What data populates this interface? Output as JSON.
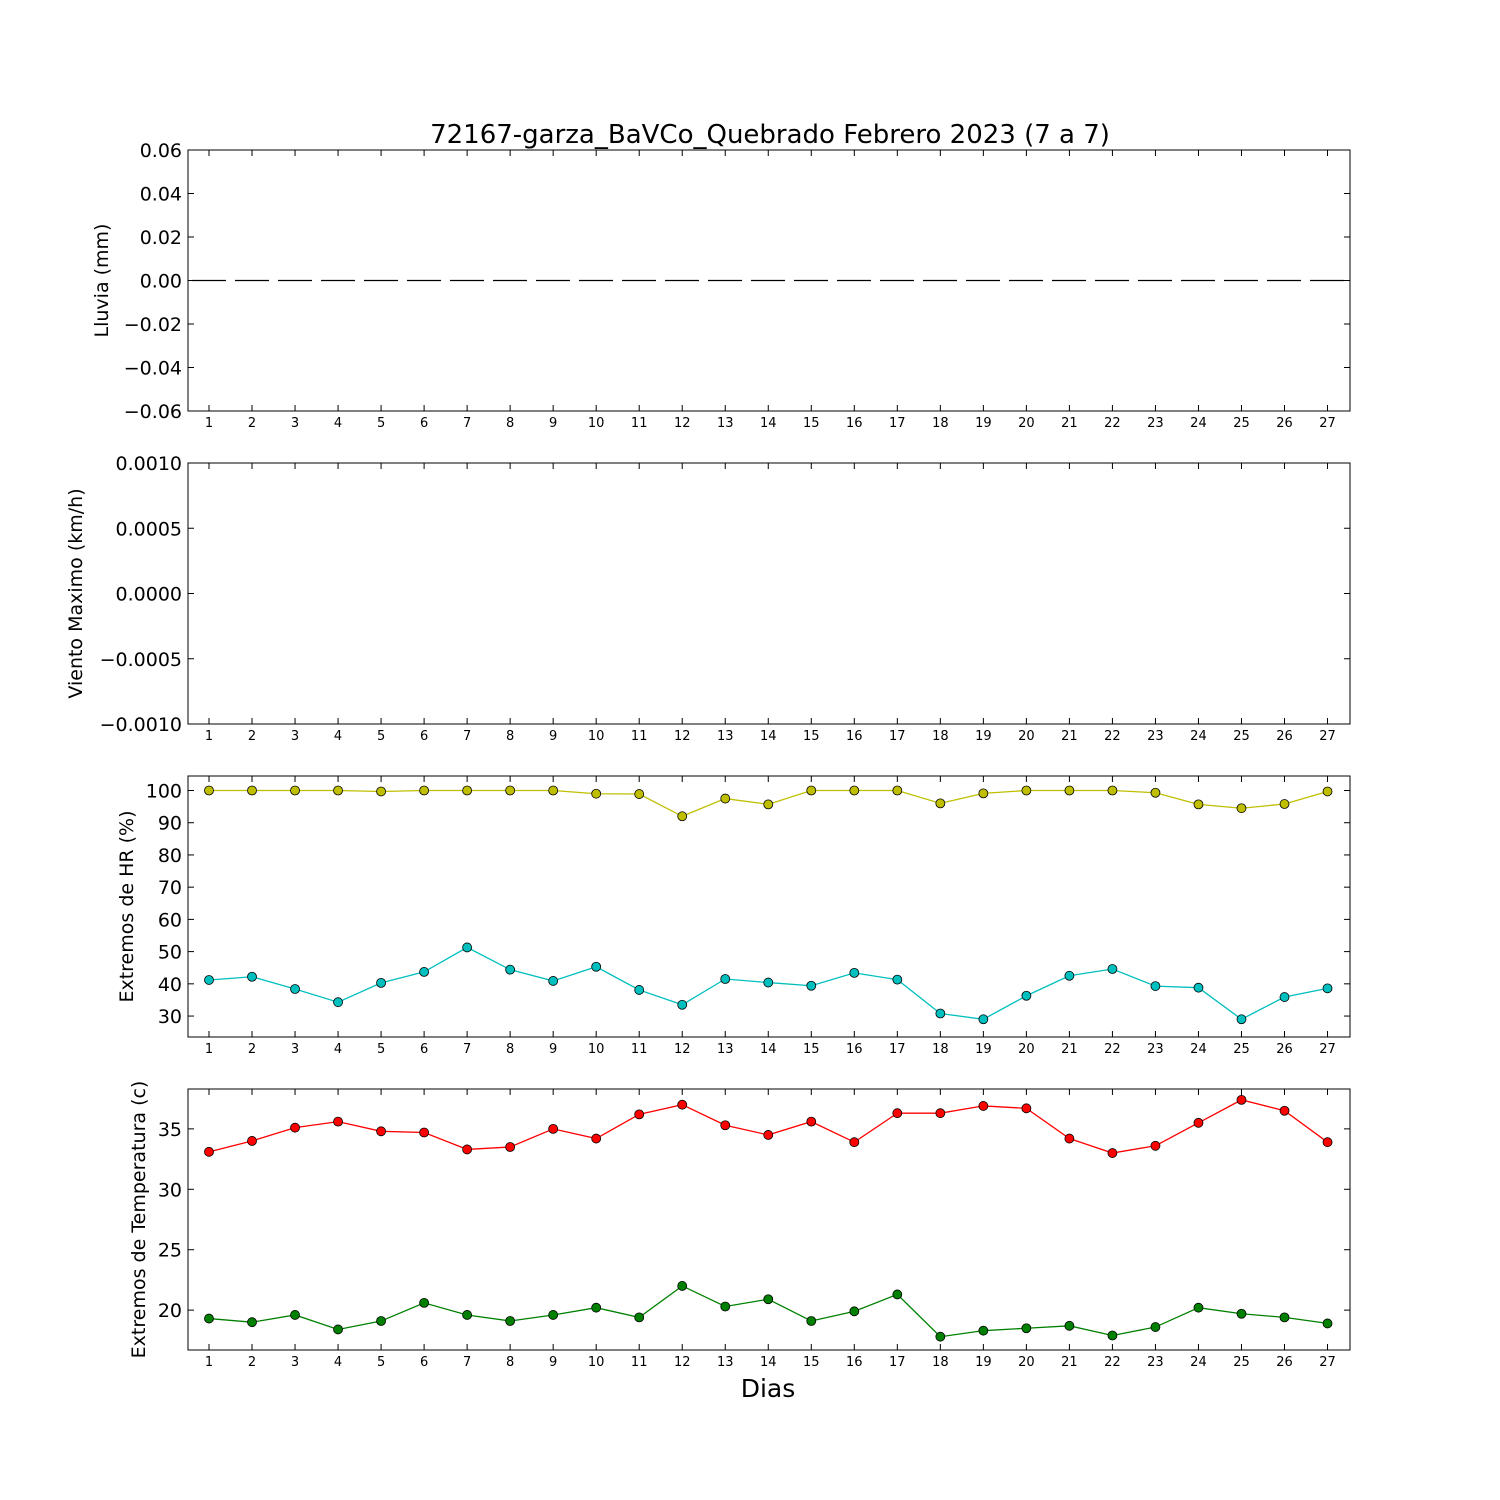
{
  "title": "72167-garza_BaVCo_Quebrado Febrero 2023  (7 a 7)",
  "xlabel": "Dias",
  "days": [
    "1",
    "2",
    "3",
    "4",
    "5",
    "6",
    "7",
    "8",
    "9",
    "10",
    "11",
    "12",
    "13",
    "14",
    "15",
    "16",
    "17",
    "18",
    "19",
    "20",
    "21",
    "22",
    "23",
    "24",
    "25",
    "26",
    "27"
  ],
  "chart_data": [
    {
      "type": "line",
      "ylabel": "Lluvia (mm)",
      "ylim": [
        -0.06,
        0.06
      ],
      "yticks": [
        "0.06",
        "0.04",
        "0.02",
        "0.00",
        "−0.02",
        "−0.04",
        "−0.06"
      ],
      "ytick_values": [
        0.06,
        0.04,
        0.02,
        0.0,
        -0.02,
        -0.04,
        -0.06
      ],
      "series": [
        {
          "color": "#000000",
          "style": "dashed",
          "marker": "none",
          "values": [
            0,
            0,
            0,
            0,
            0,
            0,
            0,
            0,
            0,
            0,
            0,
            0,
            0,
            0,
            0,
            0,
            0,
            0,
            0,
            0,
            0,
            0,
            0,
            0,
            0,
            0,
            0
          ]
        }
      ]
    },
    {
      "type": "line",
      "ylabel": "Viento Maximo (km/h)",
      "ylim": [
        -0.001,
        0.001
      ],
      "yticks": [
        "0.0010",
        "0.0005",
        "0.0000",
        "−0.0005",
        "−0.0010"
      ],
      "ytick_values": [
        0.001,
        0.0005,
        0.0,
        -0.0005,
        -0.001
      ],
      "series": []
    },
    {
      "type": "line",
      "ylabel": "Extremos de HR (%)",
      "ylim": [
        23.5,
        104.5
      ],
      "yticks": [
        "100",
        "90",
        "80",
        "70",
        "60",
        "50",
        "40",
        "30"
      ],
      "ytick_values": [
        100,
        90,
        80,
        70,
        60,
        50,
        40,
        30
      ],
      "series": [
        {
          "color": "#bfbf00",
          "marker": "circle",
          "values": [
            100,
            100,
            100,
            100,
            99.7,
            100,
            100,
            100,
            100,
            99,
            98.9,
            92,
            97.5,
            95.7,
            100,
            100,
            100,
            96,
            99.1,
            100,
            100,
            100,
            99.3,
            95.7,
            94.5,
            95.8,
            99.7
          ]
        },
        {
          "color": "#00bfbf",
          "marker": "circle",
          "values": [
            41.2,
            42.2,
            38.4,
            34.3,
            40.3,
            43.7,
            51.3,
            44.4,
            40.9,
            45.3,
            38.1,
            33.5,
            41.5,
            40.4,
            39.4,
            43.4,
            41.3,
            30.8,
            29,
            36.3,
            42.5,
            44.6,
            39.3,
            38.8,
            29,
            35.9,
            38.6
          ]
        }
      ]
    },
    {
      "type": "line",
      "ylabel": "Extremos de Temperatura (c)",
      "ylim": [
        16.7,
        38.3
      ],
      "yticks": [
        "35",
        "30",
        "25",
        "20"
      ],
      "ytick_values": [
        35,
        30,
        25,
        20
      ],
      "series": [
        {
          "color": "#ff0000",
          "marker": "circle",
          "values": [
            33.1,
            34,
            35.1,
            35.6,
            34.8,
            34.7,
            33.3,
            33.5,
            35,
            34.2,
            36.2,
            37,
            35.3,
            34.5,
            35.6,
            33.9,
            36.3,
            36.3,
            36.9,
            36.7,
            34.2,
            33,
            33.6,
            35.5,
            37.4,
            36.5,
            33.9
          ]
        },
        {
          "color": "#008000",
          "marker": "circle",
          "values": [
            19.3,
            19,
            19.6,
            18.4,
            19.1,
            20.6,
            19.6,
            19.1,
            19.6,
            20.2,
            19.4,
            22,
            20.3,
            20.9,
            19.1,
            19.9,
            21.3,
            17.8,
            18.3,
            18.5,
            18.7,
            17.9,
            18.6,
            20.2,
            19.7,
            19.4,
            18.9
          ]
        }
      ]
    }
  ]
}
